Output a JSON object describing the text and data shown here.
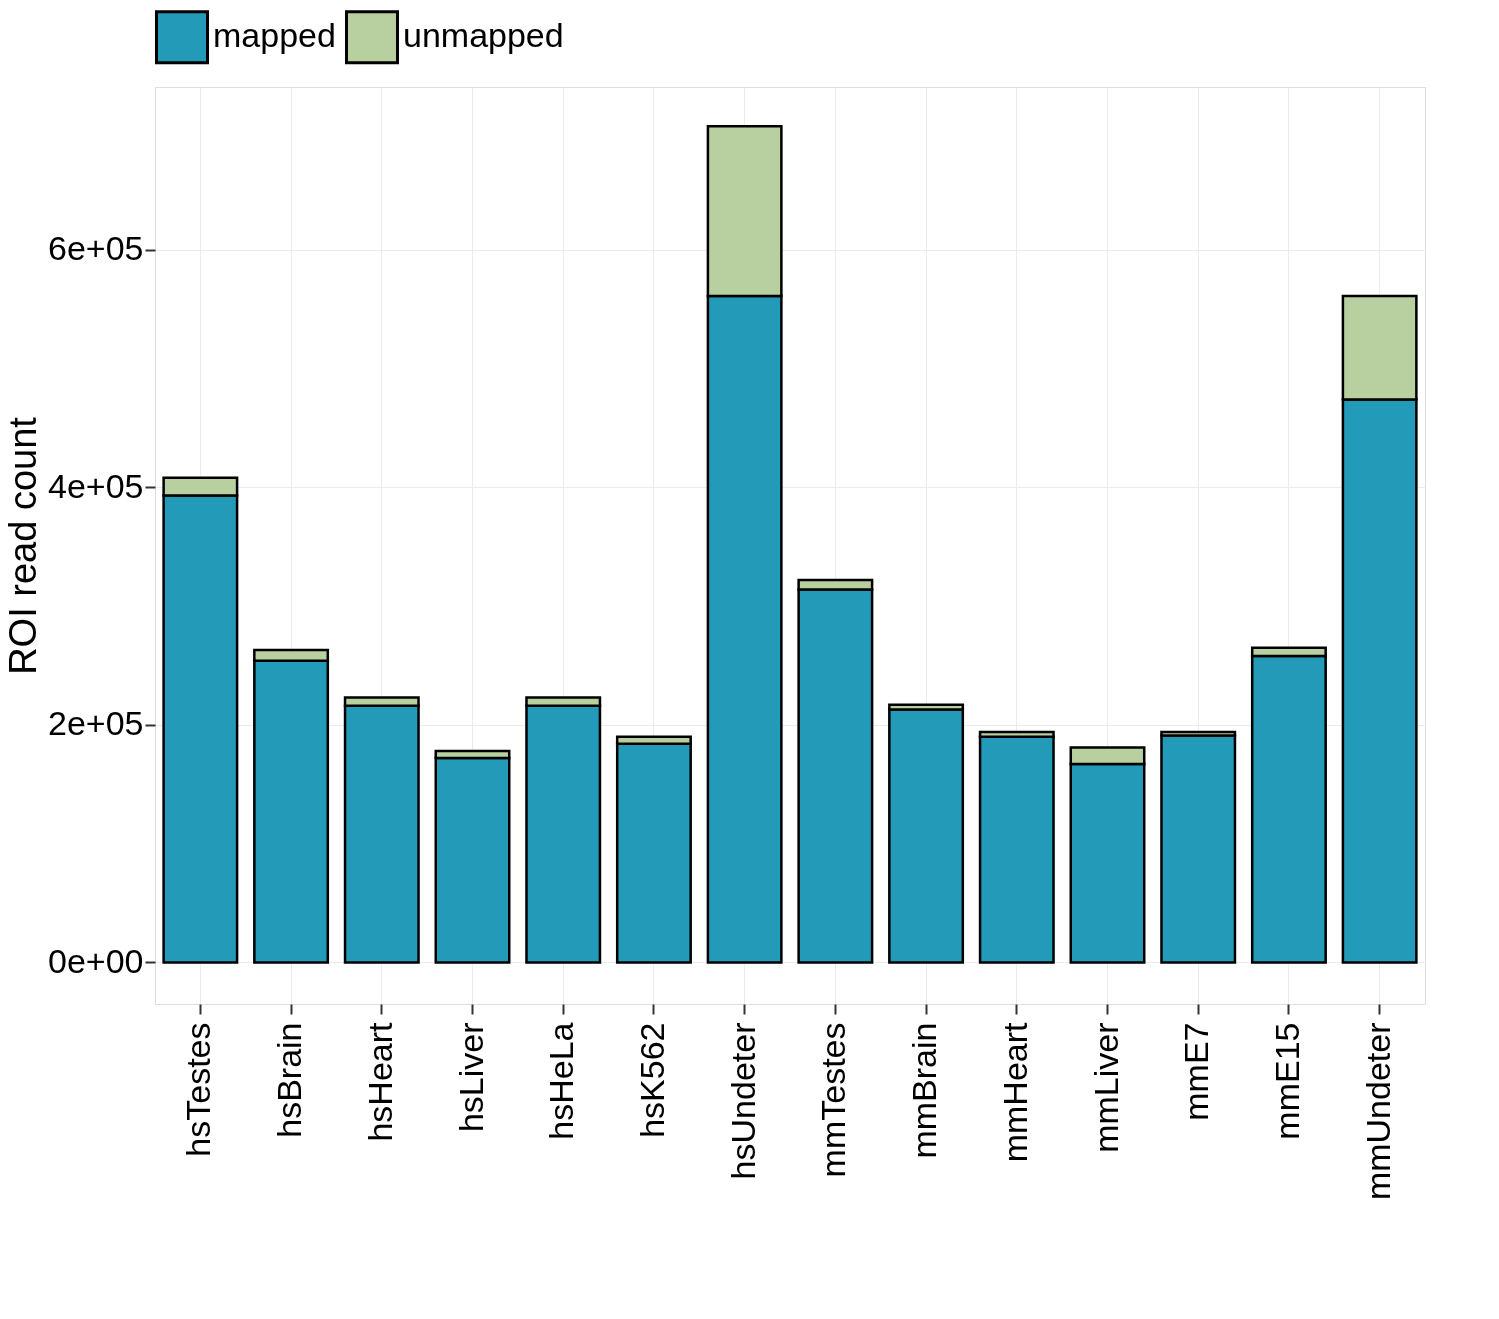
{
  "chart_data": {
    "type": "bar",
    "stacked": true,
    "ylabel": "ROI read count",
    "categories": [
      "hsTestes",
      "hsBrain",
      "hsHeart",
      "hsLiver",
      "hsHeLa",
      "hsK562",
      "hsUndeter",
      "mmTestes",
      "mmBrain",
      "mmHeart",
      "mmLiver",
      "mmE7",
      "mmE15",
      "mmUndeter"
    ],
    "series": [
      {
        "name": "mapped",
        "color": "#239bb8",
        "values": [
          393000,
          254000,
          216000,
          172000,
          216000,
          184000,
          561000,
          314000,
          213000,
          190000,
          167000,
          191000,
          258000,
          474000
        ]
      },
      {
        "name": "unmapped",
        "color": "#b8cfa0",
        "values": [
          15000,
          9000,
          7000,
          6000,
          7000,
          6000,
          143000,
          8000,
          4000,
          4000,
          14000,
          3000,
          7000,
          87000
        ]
      }
    ],
    "ylim": [
      -35000,
      737000
    ],
    "yticks": [
      {
        "value": 0,
        "label": "0e+00"
      },
      {
        "value": 200000,
        "label": "2e+05"
      },
      {
        "value": 400000,
        "label": "4e+05"
      },
      {
        "value": 600000,
        "label": "6e+05"
      }
    ],
    "grid": true,
    "legend": "top"
  }
}
